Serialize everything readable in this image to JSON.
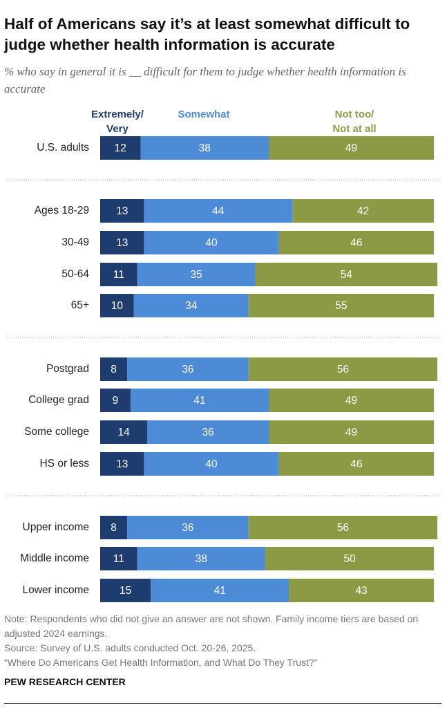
{
  "chart_data": {
    "type": "stacked-bar",
    "title": "Half of Americans say it’s at least somewhat difficult to judge whether health information is accurate",
    "subtitle": "% who say in general it is __ difficult for them to judge whether health information is accurate",
    "categories": [
      "U.S. adults",
      "Ages 18-29",
      "30-49",
      "50-64",
      "65+",
      "Postgrad",
      "College grad",
      "Some college",
      "HS or less",
      "Upper income",
      "Middle income",
      "Lower income"
    ],
    "series": [
      {
        "name": "Extremely/\nVery",
        "color": "#1f3c6e",
        "values": [
          12,
          13,
          13,
          11,
          10,
          8,
          9,
          14,
          13,
          8,
          11,
          15
        ]
      },
      {
        "name": "Somewhat",
        "color": "#4e8bd6",
        "values": [
          38,
          44,
          40,
          35,
          34,
          36,
          41,
          36,
          40,
          36,
          38,
          41
        ]
      },
      {
        "name": "Not too/\nNot at all",
        "color": "#8c9a45",
        "values": [
          49,
          42,
          46,
          54,
          55,
          56,
          49,
          49,
          46,
          56,
          50,
          43
        ]
      }
    ],
    "note": "Note: Respondents who did not give an answer are not shown. Family income tiers are based on adjusted 2024 earnings.",
    "source": "Source: Survey of U.S. adults conducted Oct. 20-26, 2025.",
    "report": "“Where Do Americans Get Health Information, and What Do They Trust?”",
    "footer": "PEW RESEARCH CENTER"
  }
}
